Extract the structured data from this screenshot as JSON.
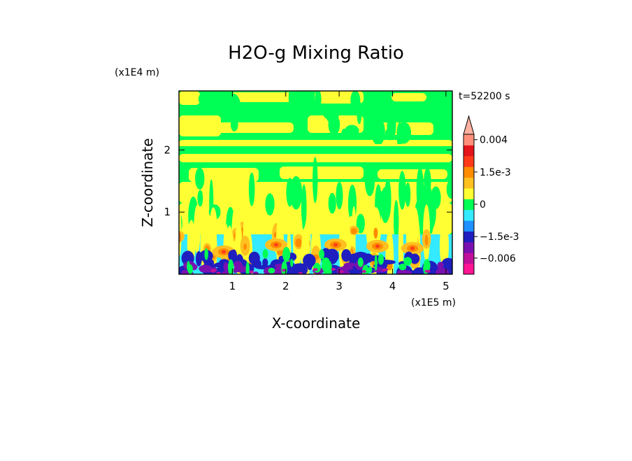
{
  "chart_data": {
    "type": "heatmap",
    "title": "H2O-g Mixing Ratio",
    "time_label": "t=52200 s",
    "xlabel": "X-coordinate",
    "ylabel": "Z-coordinate",
    "x_unit": "(x1E5 m)",
    "z_unit": "(x1E4 m)",
    "xlim": [
      0,
      5.12
    ],
    "ylim": [
      0,
      2.95
    ],
    "x_ticks": [
      {
        "value": 1,
        "label": "1"
      },
      {
        "value": 2,
        "label": "2"
      },
      {
        "value": 3,
        "label": "3"
      },
      {
        "value": 4,
        "label": "4"
      },
      {
        "value": 5,
        "label": "5"
      }
    ],
    "y_ticks": [
      {
        "value": 1,
        "label": "1"
      },
      {
        "value": 2,
        "label": "2"
      }
    ],
    "colorbar": {
      "labels": [
        {
          "text": "0.004",
          "level": 0.004
        },
        {
          "text": "1.5e-3",
          "level": 0.0015
        },
        {
          "text": "0",
          "level": 0
        },
        {
          "text": "−1.5e-3",
          "level": -0.0015
        },
        {
          "text": "−0.006",
          "level": -0.006
        }
      ],
      "segments": [
        {
          "color": "#ff1493",
          "level": -0.008
        },
        {
          "color": "#c0109a",
          "level": -0.006
        },
        {
          "color": "#7a10b0",
          "level": -0.004
        },
        {
          "color": "#1f1fbf",
          "level": -0.002
        },
        {
          "color": "#1e90ff",
          "level": -0.001
        },
        {
          "color": "#33eaff",
          "level": -0.0005
        },
        {
          "color": "#00ff55",
          "level": 0
        },
        {
          "color": "#ffff33",
          "level": 0.0005
        },
        {
          "color": "#ffc020",
          "level": 0.001
        },
        {
          "color": "#ff8c00",
          "level": 0.0015
        },
        {
          "color": "#ff3a1a",
          "level": 0.002
        },
        {
          "color": "#e4141a",
          "level": 0.003
        },
        {
          "color": "#ff8f7a",
          "level": 0.004
        }
      ],
      "extend_max_color": "#ffb0a0"
    },
    "field_regions": [
      {
        "zone": "upper",
        "dominant": "#00ff55",
        "secondary": "#ffff33"
      },
      {
        "zone": "middle",
        "dominant": "#ffff33",
        "secondary": "#00ff55"
      },
      {
        "zone": "boundary",
        "dominant": "#33eaff",
        "secondary": "#ffc020"
      },
      {
        "zone": "surface",
        "dominant": "#1f1fbf",
        "secondary": "#7a10b0"
      }
    ]
  }
}
